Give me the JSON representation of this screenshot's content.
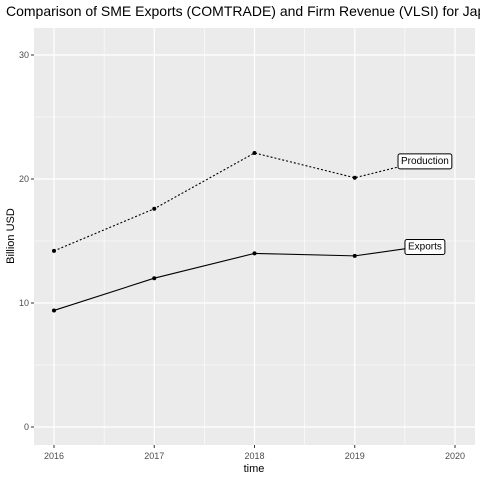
{
  "chart_data": {
    "type": "line",
    "title": "Comparison of SME Exports (COMTRADE) and Firm Revenue (VLSI) for Japan",
    "xlabel": "time",
    "ylabel": "Billion USD",
    "x": [
      2016,
      2017,
      2018,
      2019,
      2020
    ],
    "xlim": [
      2016,
      2020
    ],
    "ylim": [
      0,
      30
    ],
    "xticks": [
      "2016",
      "2017",
      "2018",
      "2019",
      "2020"
    ],
    "yticks": [
      "0",
      "10",
      "20",
      "30"
    ],
    "grid": true,
    "legend": "none",
    "series": [
      {
        "name": "Production",
        "linestyle": "dotted",
        "x": [
          2016,
          2017,
          2018,
          2019,
          2019.7
        ],
        "values": [
          14.2,
          17.6,
          22.1,
          20.1,
          21.5
        ]
      },
      {
        "name": "Exports",
        "linestyle": "solid",
        "x": [
          2016,
          2017,
          2018,
          2019,
          2019.7
        ],
        "values": [
          9.4,
          12.0,
          14.0,
          13.8,
          14.6
        ]
      }
    ],
    "colors": {
      "panel": "#ebebeb",
      "grid": "#ffffff",
      "line": "#000000"
    }
  }
}
